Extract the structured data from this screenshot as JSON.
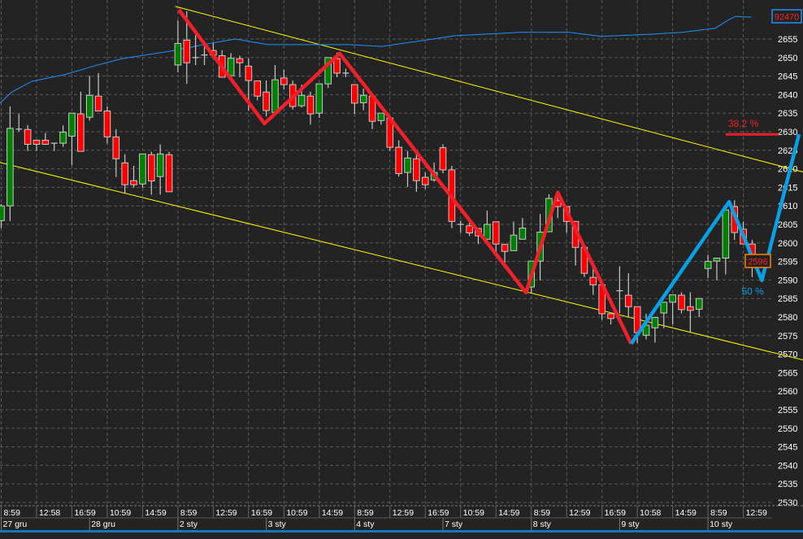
{
  "chart_data": {
    "type": "candlestick",
    "title": "",
    "xlabel": "",
    "ylabel": "",
    "ylim": [
      2527,
      2666
    ],
    "y_ticks": [
      2655,
      2650,
      2645,
      2640,
      2635,
      2630,
      2625,
      2620,
      2615,
      2610,
      2605,
      2600,
      2595,
      2590,
      2585,
      2580,
      2575,
      2570,
      2565,
      2560,
      2555,
      2550,
      2545,
      2540,
      2535,
      2530
    ],
    "grid": true,
    "colors": {
      "background": "#232323",
      "grid": "#5a5a5a",
      "up": "#008000",
      "down": "#ff0000",
      "wick": "#c8c8c8",
      "channel": "#ffff00",
      "zigzag_down": "#f0202a",
      "zigzag_up": "#0aa0e6",
      "indicator": "#1e90ff",
      "axis_text": "#ffffff"
    },
    "time_labels": [
      {
        "bar": 0,
        "text": "8:59"
      },
      {
        "bar": 4,
        "text": "12:58"
      },
      {
        "bar": 8,
        "text": "16:59"
      },
      {
        "bar": 12,
        "text": "10:59"
      },
      {
        "bar": 16,
        "text": "14:59"
      },
      {
        "bar": 20,
        "text": "8:59"
      },
      {
        "bar": 24,
        "text": "12:59"
      },
      {
        "bar": 28,
        "text": "16:59"
      },
      {
        "bar": 32,
        "text": "10:59"
      },
      {
        "bar": 36,
        "text": "14:59"
      },
      {
        "bar": 40,
        "text": "8:59"
      },
      {
        "bar": 44,
        "text": "12:59"
      },
      {
        "bar": 48,
        "text": "16:59"
      },
      {
        "bar": 52,
        "text": "10:59"
      },
      {
        "bar": 56,
        "text": "14:59"
      },
      {
        "bar": 60,
        "text": "8:59"
      },
      {
        "bar": 64,
        "text": "12:59"
      },
      {
        "bar": 68,
        "text": "16:59"
      },
      {
        "bar": 72,
        "text": "10:58"
      },
      {
        "bar": 76,
        "text": "14:59"
      },
      {
        "bar": 80,
        "text": "8:59"
      },
      {
        "bar": 84,
        "text": "12:59"
      }
    ],
    "date_labels": [
      {
        "bar": 0,
        "text": "27 gru"
      },
      {
        "bar": 10,
        "text": "28 gru"
      },
      {
        "bar": 20,
        "text": "2 sty"
      },
      {
        "bar": 30,
        "text": "3 sty"
      },
      {
        "bar": 40,
        "text": "4 sty"
      },
      {
        "bar": 50,
        "text": "7 sty"
      },
      {
        "bar": 60,
        "text": "8 sty"
      },
      {
        "bar": 70,
        "text": "9 sty"
      },
      {
        "bar": 80,
        "text": "10 sty"
      }
    ],
    "candles_ohlc": [
      [
        2606,
        2610.5,
        2604,
        2610
      ],
      [
        2610,
        2636.8,
        2605.9,
        2630.9
      ],
      [
        2630.7,
        2634.8,
        2630,
        2630.7
      ],
      [
        2630.6,
        2631.8,
        2624.8,
        2626.6
      ],
      [
        2627.7,
        2627.7,
        2624.8,
        2626.6
      ],
      [
        2627.7,
        2629.7,
        2626.6,
        2626.6
      ],
      [
        2626.9,
        2626.9,
        2624.8,
        2626.9
      ],
      [
        2626.9,
        2631.7,
        2625.9,
        2629.9
      ],
      [
        2628.8,
        2635,
        2621,
        2635
      ],
      [
        2634.8,
        2640.8,
        2624.7,
        2624.7
      ],
      [
        2633.9,
        2645.1,
        2633,
        2639.8
      ],
      [
        2639.6,
        2645.8,
        2635.6,
        2635.6
      ],
      [
        2635.6,
        2636.8,
        2626.8,
        2628.6
      ],
      [
        2628.6,
        2630.7,
        2617.8,
        2622.7
      ],
      [
        2621.6,
        2623.9,
        2613.3,
        2615.7
      ],
      [
        2616.8,
        2620.8,
        2614.9,
        2615.7
      ],
      [
        2615.9,
        2624,
        2614.9,
        2624
      ],
      [
        2623.8,
        2624.6,
        2613,
        2616.7
      ],
      [
        2617.9,
        2626.6,
        2613,
        2624
      ],
      [
        2623.8,
        2624.6,
        2613.8,
        2613.8
      ],
      [
        2648,
        2660,
        2646,
        2653.8
      ],
      [
        2654.7,
        2662.5,
        2642.9,
        2648.6
      ],
      [
        2650,
        2656,
        2648,
        2650
      ],
      [
        2650.7,
        2653.9,
        2648,
        2650.7
      ],
      [
        2651.9,
        2653.9,
        2650.7,
        2650.7
      ],
      [
        2650.5,
        2652,
        2644.7,
        2644.7
      ],
      [
        2645.1,
        2651.2,
        2644.5,
        2649.8
      ],
      [
        2649.7,
        2650.5,
        2644.7,
        2648.6
      ],
      [
        2647.7,
        2649.8,
        2635.7,
        2643.8
      ],
      [
        2643.7,
        2643.7,
        2638.5,
        2639.6
      ],
      [
        2640.7,
        2643.8,
        2634.1,
        2635.7
      ],
      [
        2635.2,
        2648,
        2634.5,
        2644
      ],
      [
        2644.5,
        2646.7,
        2641.4,
        2642.7
      ],
      [
        2642.7,
        2643.8,
        2636,
        2636.8
      ],
      [
        2637,
        2642.7,
        2636.5,
        2639.8
      ],
      [
        2639.6,
        2640.8,
        2631.9,
        2634.8
      ],
      [
        2635,
        2643,
        2633.7,
        2642.9
      ],
      [
        2642.9,
        2650,
        2641.8,
        2650
      ],
      [
        2649.7,
        2651.3,
        2644.7,
        2645.8
      ],
      [
        2645.8,
        2647,
        2644.7,
        2645.8
      ],
      [
        2642.7,
        2642.7,
        2634.8,
        2637.7
      ],
      [
        2637.8,
        2641.6,
        2635.8,
        2639.8
      ],
      [
        2639.6,
        2639.6,
        2630.7,
        2632.8
      ],
      [
        2633,
        2635,
        2631.9,
        2635
      ],
      [
        2633.7,
        2633.7,
        2624.8,
        2625.8
      ],
      [
        2625.8,
        2627.7,
        2617.9,
        2618.7
      ],
      [
        2619,
        2624.8,
        2615.1,
        2622.9
      ],
      [
        2622.7,
        2624,
        2613.8,
        2616.8
      ],
      [
        2617.7,
        2619,
        2614.5,
        2615.7
      ],
      [
        2617,
        2621.7,
        2616.5,
        2619
      ],
      [
        2625.7,
        2626.6,
        2618.8,
        2619.7
      ],
      [
        2619.7,
        2620.8,
        2604,
        2605.8
      ],
      [
        2605,
        2606,
        2602.7,
        2605
      ],
      [
        2604.6,
        2605.5,
        2601.9,
        2602.7
      ],
      [
        2603.9,
        2603.9,
        2599.7,
        2601.9
      ],
      [
        2601,
        2608.7,
        2600.5,
        2605
      ],
      [
        2605.7,
        2605.7,
        2597.5,
        2599.7
      ],
      [
        2599.6,
        2599.6,
        2593.2,
        2597.7
      ],
      [
        2597.9,
        2605.8,
        2597.9,
        2602.1
      ],
      [
        2601,
        2606.7,
        2601,
        2604
      ],
      [
        2588.1,
        2595.1,
        2586.5,
        2595.1
      ],
      [
        2595.1,
        2607.8,
        2589.9,
        2602.9
      ],
      [
        2603,
        2613.1,
        2603,
        2612
      ],
      [
        2611.4,
        2613.5,
        2606.7,
        2609.8
      ],
      [
        2609.8,
        2609.8,
        2602.7,
        2605.8
      ],
      [
        2605.8,
        2605.8,
        2593.9,
        2598.8
      ],
      [
        2598.8,
        2598.8,
        2590.8,
        2591.8
      ],
      [
        2590.7,
        2593.2,
        2586,
        2588.7
      ],
      [
        2588.7,
        2588.7,
        2579.3,
        2580.9
      ],
      [
        2580.9,
        2580.9,
        2578,
        2579.6
      ],
      [
        2587.1,
        2593.7,
        2581,
        2587.1
      ],
      [
        2585.9,
        2591.8,
        2580,
        2582.8
      ],
      [
        2582.8,
        2582.8,
        2573,
        2575.8
      ],
      [
        2575.1,
        2580.9,
        2574,
        2577.8
      ],
      [
        2577.1,
        2579.9,
        2573.1,
        2579.9
      ],
      [
        2581.1,
        2584,
        2577,
        2584
      ],
      [
        2584,
        2586,
        2578,
        2586
      ],
      [
        2585.9,
        2586.7,
        2581,
        2582
      ],
      [
        2582.8,
        2586.7,
        2576,
        2581.8
      ],
      [
        2582.1,
        2585,
        2580,
        2585
      ],
      [
        2593.1,
        2596.8,
        2590.5,
        2595
      ],
      [
        2595.1,
        2596,
        2589.9,
        2595.9
      ],
      [
        2595.9,
        2608.9,
        2591.5,
        2608.9
      ],
      [
        2609.8,
        2611.5,
        2600.8,
        2602.8
      ],
      [
        2603.7,
        2605.8,
        2599.7,
        2599.7
      ],
      [
        2599.7,
        2600.8,
        2590.8,
        2594.8
      ]
    ],
    "channel_upper": [
      [
        19.7,
        2663.8
      ],
      [
        90.8,
        2619.1
      ]
    ],
    "channel_lower": [
      [
        -0.14,
        2621.7
      ],
      [
        90.8,
        2568.4
      ]
    ],
    "zigzag_down": [
      [
        20.1,
        2662.9
      ],
      [
        29.8,
        2632.2
      ],
      [
        38.3,
        2651.1
      ],
      [
        59.4,
        2586.6
      ],
      [
        63,
        2613.6
      ],
      [
        71.3,
        2572.8
      ]
    ],
    "zigzag_up": [
      [
        71.3,
        2572.8
      ],
      [
        82.4,
        2611.1
      ],
      [
        86.1,
        2589.9
      ],
      [
        90.3,
        2629.3
      ]
    ],
    "indicator_line": [
      [
        -0.14,
        2637.7
      ],
      [
        1.2,
        2640.7
      ],
      [
        3.5,
        2643.6
      ],
      [
        7.2,
        2645.4
      ],
      [
        10.9,
        2648
      ],
      [
        13.7,
        2649.7
      ],
      [
        19.6,
        2651.9
      ],
      [
        22.9,
        2653.5
      ],
      [
        26.5,
        2655
      ],
      [
        30.2,
        2653.5
      ],
      [
        34.8,
        2653.5
      ],
      [
        39.4,
        2653.5
      ],
      [
        43.1,
        2653
      ],
      [
        47.7,
        2654.6
      ],
      [
        51.4,
        2655.9
      ],
      [
        58.7,
        2656.8
      ],
      [
        64.3,
        2656.8
      ],
      [
        67.9,
        2655.7
      ],
      [
        73.5,
        2656.3
      ],
      [
        77.1,
        2656.8
      ],
      [
        80.8,
        2657.9
      ],
      [
        82.2,
        2660
      ],
      [
        83.1,
        2661.1
      ],
      [
        84.9,
        2660.9
      ]
    ],
    "fib_level": {
      "label": "38,2 %",
      "price": 2629.3,
      "from_bar": 82,
      "to_bar": 88
    },
    "fib_label_50": {
      "label": "50 %",
      "bar": 83.8,
      "price": 2590
    },
    "indicator_value_label": "92470",
    "last_price_label": "2596"
  }
}
